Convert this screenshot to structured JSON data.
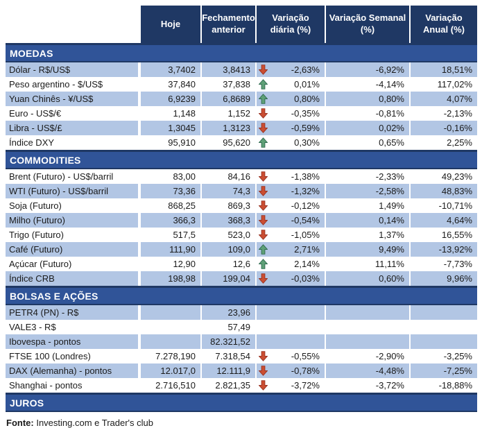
{
  "header": {
    "columns": [
      "Hoje",
      "Fechamento anterior",
      "Variação diária (%)",
      "Variação Semanal (%)",
      "Variação Anual (%)"
    ]
  },
  "sections": [
    {
      "title": "MOEDAS",
      "rows": [
        {
          "label": "Dólar - R$/US$",
          "hoje": "3,7402",
          "fechamento": "3,8413",
          "arrow": "down",
          "diaria": "-2,63%",
          "semanal": "-6,92%",
          "anual": "18,51%"
        },
        {
          "label": "Peso argentino - $/US$",
          "hoje": "37,840",
          "fechamento": "37,838",
          "arrow": "up",
          "diaria": "0,01%",
          "semanal": "-4,14%",
          "anual": "117,02%"
        },
        {
          "label": "Yuan Chinês - ¥/US$",
          "hoje": "6,9239",
          "fechamento": "6,8689",
          "arrow": "up",
          "diaria": "0,80%",
          "semanal": "0,80%",
          "anual": "4,07%"
        },
        {
          "label": "Euro - US$/€",
          "hoje": "1,148",
          "fechamento": "1,152",
          "arrow": "down",
          "diaria": "-0,35%",
          "semanal": "-0,81%",
          "anual": "-2,13%"
        },
        {
          "label": "Libra - US$/£",
          "hoje": "1,3045",
          "fechamento": "1,3123",
          "arrow": "down",
          "diaria": "-0,59%",
          "semanal": "0,02%",
          "anual": "-0,16%"
        },
        {
          "label": "Índice DXY",
          "hoje": "95,910",
          "fechamento": "95,620",
          "arrow": "up",
          "diaria": "0,30%",
          "semanal": "0,65%",
          "anual": "2,25%"
        }
      ]
    },
    {
      "title": "COMMODITIES",
      "rows": [
        {
          "label": "Brent (Futuro) - US$/barril",
          "hoje": "83,00",
          "fechamento": "84,16",
          "arrow": "down",
          "diaria": "-1,38%",
          "semanal": "-2,33%",
          "anual": "49,23%"
        },
        {
          "label": "WTI (Futuro) - US$/barril",
          "hoje": "73,36",
          "fechamento": "74,3",
          "arrow": "down",
          "diaria": "-1,32%",
          "semanal": "-2,58%",
          "anual": "48,83%"
        },
        {
          "label": "Soja (Futuro)",
          "hoje": "868,25",
          "fechamento": "869,3",
          "arrow": "down",
          "diaria": "-0,12%",
          "semanal": "1,49%",
          "anual": "-10,71%"
        },
        {
          "label": "Milho (Futuro)",
          "hoje": "366,3",
          "fechamento": "368,3",
          "arrow": "down",
          "diaria": "-0,54%",
          "semanal": "0,14%",
          "anual": "4,64%"
        },
        {
          "label": "Trigo (Futuro)",
          "hoje": "517,5",
          "fechamento": "523,0",
          "arrow": "down",
          "diaria": "-1,05%",
          "semanal": "1,37%",
          "anual": "16,55%"
        },
        {
          "label": "Café (Futuro)",
          "hoje": "111,90",
          "fechamento": "109,0",
          "arrow": "up",
          "diaria": "2,71%",
          "semanal": "9,49%",
          "anual": "-13,92%"
        },
        {
          "label": "Açúcar (Futuro)",
          "hoje": "12,90",
          "fechamento": "12,6",
          "arrow": "up",
          "diaria": "2,14%",
          "semanal": "11,11%",
          "anual": "-7,73%"
        },
        {
          "label": "Índice CRB",
          "hoje": "198,98",
          "fechamento": "199,04",
          "arrow": "down",
          "diaria": "-0,03%",
          "semanal": "0,60%",
          "anual": "9,96%"
        }
      ]
    },
    {
      "title": "BOLSAS E AÇÕES",
      "rows": [
        {
          "label": "PETR4 (PN) - R$",
          "hoje": "",
          "fechamento": "23,96",
          "arrow": "",
          "diaria": "",
          "semanal": "",
          "anual": ""
        },
        {
          "label": "VALE3 - R$",
          "hoje": "",
          "fechamento": "57,49",
          "arrow": "",
          "diaria": "",
          "semanal": "",
          "anual": ""
        },
        {
          "label": "Ibovespa - pontos",
          "hoje": "",
          "fechamento": "82.321,52",
          "arrow": "",
          "diaria": "",
          "semanal": "",
          "anual": ""
        },
        {
          "label": "FTSE 100 (Londres)",
          "hoje": "7.278,190",
          "fechamento": "7.318,54",
          "arrow": "down",
          "diaria": "-0,55%",
          "semanal": "-2,90%",
          "anual": "-3,25%"
        },
        {
          "label": "DAX (Alemanha) - pontos",
          "hoje": "12.017,0",
          "fechamento": "12.111,9",
          "arrow": "down",
          "diaria": "-0,78%",
          "semanal": "-4,48%",
          "anual": "-7,25%"
        },
        {
          "label": "Shanghai - pontos",
          "hoje": "2.716,510",
          "fechamento": "2.821,35",
          "arrow": "down",
          "diaria": "-3,72%",
          "semanal": "-3,72%",
          "anual": "-18,88%"
        }
      ]
    },
    {
      "title": "JUROS",
      "rows": []
    }
  ],
  "footer": {
    "source_label": "Fonte:",
    "source_text": " Investing.com e Trader's club"
  },
  "colors": {
    "header_navy": "#1F3864",
    "section_band_blue": "#305498",
    "row_stripe_blue": "#B2C6E4",
    "arrow_up_fill": "#5FA077",
    "arrow_up_stroke": "#2F6B4F",
    "arrow_down_fill": "#CB4E32",
    "arrow_down_stroke": "#993322"
  },
  "chart_data": {
    "type": "table",
    "title": "",
    "columns": [
      "",
      "Hoje",
      "Fechamento anterior",
      "Variação diária (%)",
      "Variação Semanal (%)",
      "Variação Anual (%)"
    ],
    "rows": [
      [
        "MOEDAS",
        "",
        "",
        "",
        "",
        ""
      ],
      [
        "Dólar - R$/US$",
        "3,7402",
        "3,8413",
        "-2,63%",
        "-6,92%",
        "18,51%"
      ],
      [
        "Peso argentino - $/US$",
        "37,840",
        "37,838",
        "0,01%",
        "-4,14%",
        "117,02%"
      ],
      [
        "Yuan Chinês - ¥/US$",
        "6,9239",
        "6,8689",
        "0,80%",
        "0,80%",
        "4,07%"
      ],
      [
        "Euro - US$/€",
        "1,148",
        "1,152",
        "-0,35%",
        "-0,81%",
        "-2,13%"
      ],
      [
        "Libra - US$/£",
        "1,3045",
        "1,3123",
        "-0,59%",
        "0,02%",
        "-0,16%"
      ],
      [
        "Índice DXY",
        "95,910",
        "95,620",
        "0,30%",
        "0,65%",
        "2,25%"
      ],
      [
        "COMMODITIES",
        "",
        "",
        "",
        "",
        ""
      ],
      [
        "Brent (Futuro) - US$/barril",
        "83,00",
        "84,16",
        "-1,38%",
        "-2,33%",
        "49,23%"
      ],
      [
        "WTI (Futuro) - US$/barril",
        "73,36",
        "74,3",
        "-1,32%",
        "-2,58%",
        "48,83%"
      ],
      [
        "Soja (Futuro)",
        "868,25",
        "869,3",
        "-0,12%",
        "1,49%",
        "-10,71%"
      ],
      [
        "Milho (Futuro)",
        "366,3",
        "368,3",
        "-0,54%",
        "0,14%",
        "4,64%"
      ],
      [
        "Trigo (Futuro)",
        "517,5",
        "523,0",
        "-1,05%",
        "1,37%",
        "16,55%"
      ],
      [
        "Café (Futuro)",
        "111,90",
        "109,0",
        "2,71%",
        "9,49%",
        "-13,92%"
      ],
      [
        "Açúcar (Futuro)",
        "12,90",
        "12,6",
        "2,14%",
        "11,11%",
        "-7,73%"
      ],
      [
        "Índice CRB",
        "198,98",
        "199,04",
        "-0,03%",
        "0,60%",
        "9,96%"
      ],
      [
        "BOLSAS E AÇÕES",
        "",
        "",
        "",
        "",
        ""
      ],
      [
        "PETR4 (PN) - R$",
        "",
        "23,96",
        "",
        "",
        ""
      ],
      [
        "VALE3 - R$",
        "",
        "57,49",
        "",
        "",
        ""
      ],
      [
        "Ibovespa - pontos",
        "",
        "82.321,52",
        "",
        "",
        ""
      ],
      [
        "FTSE 100 (Londres)",
        "7.278,190",
        "7.318,54",
        "-0,55%",
        "-2,90%",
        "-3,25%"
      ],
      [
        "DAX (Alemanha) - pontos",
        "12.017,0",
        "12.111,9",
        "-0,78%",
        "-4,48%",
        "-7,25%"
      ],
      [
        "Shanghai - pontos",
        "2.716,510",
        "2.821,35",
        "-3,72%",
        "-3,72%",
        "-18,88%"
      ],
      [
        "JUROS",
        "",
        "",
        "",
        "",
        ""
      ]
    ]
  }
}
